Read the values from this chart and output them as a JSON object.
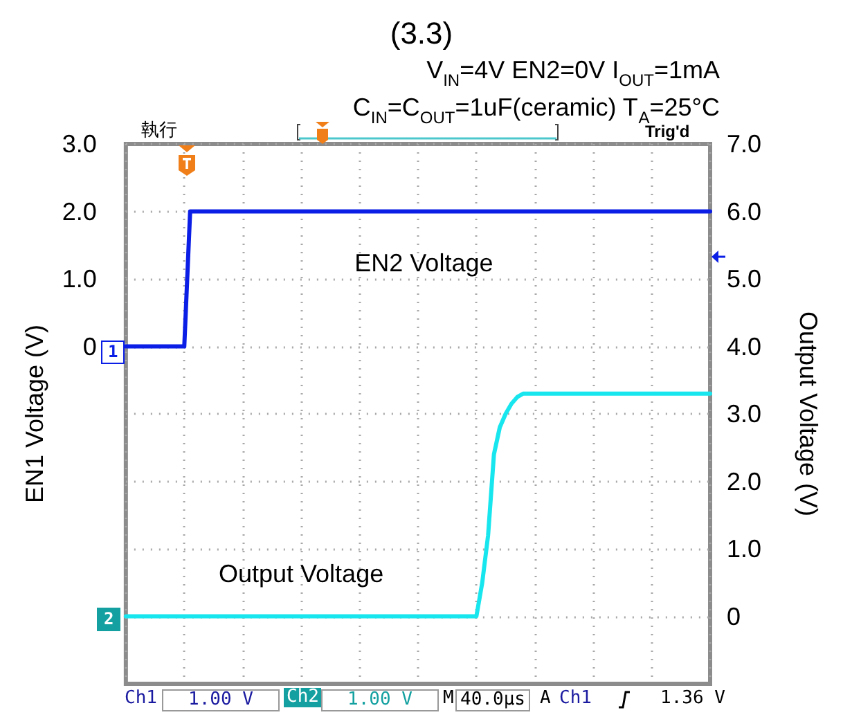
{
  "chart_data": {
    "type": "line",
    "title": "(3.3)",
    "subtitle": "V$_{IN}$=4V EN2=0V I$_{OUT}$=1mA\nC$_{IN}$=C$_{OUT}$=1uF(ceramic) T$_{A}$=25°C",
    "ylabel": "EN1 Voltage (V)",
    "y2label": "Output Voltage (V)",
    "categories": [
      null,
      null,
      null,
      null,
      null,
      null,
      null,
      null,
      null,
      null,
      null,
      null,
      null,
      null,
      null,
      null,
      null,
      null,
      null,
      null,
      null,
      null,
      null,
      null,
      null,
      null,
      null,
      null,
      null,
      null,
      null,
      null,
      null,
      null,
      null,
      null,
      null,
      null,
      null,
      null,
      null,
      null,
      null,
      null,
      null,
      null,
      null,
      null,
      null,
      null,
      null,
      null,
      null,
      null,
      null,
      null,
      null,
      null,
      null,
      null,
      null,
      null,
      null,
      null,
      null,
      null,
      null,
      null,
      null,
      null,
      null,
      null,
      null,
      null,
      null,
      null,
      null,
      null,
      null,
      null,
      null,
      null,
      null,
      null,
      null,
      null,
      null,
      null,
      null,
      null,
      null,
      null,
      null,
      null,
      null,
      null,
      null,
      null,
      null,
      null,
      null
    ],
    "series": [
      {
        "name": "EN2 Voltage",
        "color": "#0a1ee6",
        "values": [
          0,
          0,
          0,
          0,
          0,
          0,
          0,
          0,
          0,
          0,
          0,
          2,
          2,
          2,
          2,
          2,
          2,
          2,
          2,
          2,
          2,
          2,
          2,
          2,
          2,
          2,
          2,
          2,
          2,
          2,
          2,
          2,
          2,
          2,
          2,
          2,
          2,
          2,
          2,
          2,
          2,
          2,
          2,
          2,
          2,
          2,
          2,
          2,
          2,
          2,
          2,
          2,
          2,
          2,
          2,
          2,
          2,
          2,
          2,
          2,
          2,
          2,
          2,
          2,
          2,
          2,
          2,
          2,
          2,
          2,
          2,
          2,
          2,
          2,
          2,
          2,
          2,
          2,
          2,
          2,
          2,
          2,
          2,
          2,
          2,
          2,
          2,
          2,
          2,
          2,
          2,
          2,
          2,
          2,
          2,
          2,
          2,
          2,
          2,
          2,
          2
        ]
      },
      {
        "name": "Output Voltage",
        "color": "#18e6ee",
        "axis": "y2",
        "values": [
          0,
          0,
          0,
          0,
          0,
          0,
          0,
          0,
          0,
          0,
          0,
          0,
          0,
          0,
          0,
          0,
          0,
          0,
          0,
          0,
          0,
          0,
          0,
          0,
          0,
          0,
          0,
          0,
          0,
          0,
          0,
          0,
          0,
          0,
          0,
          0,
          0,
          0,
          0,
          0,
          0,
          0,
          0,
          0,
          0,
          0,
          0,
          0,
          0,
          0,
          0,
          0,
          0,
          0,
          0,
          0,
          0,
          0,
          0,
          0,
          0,
          0.5,
          1.2,
          2.4,
          2.8,
          3.0,
          3.15,
          3.25,
          3.3,
          3.3,
          3.3,
          3.3,
          3.3,
          3.3,
          3.3,
          3.3,
          3.3,
          3.3,
          3.3,
          3.3,
          3.3,
          3.3,
          3.3,
          3.3,
          3.3,
          3.3,
          3.3,
          3.3,
          3.3,
          3.3,
          3.3,
          3.3,
          3.3,
          3.3,
          3.3,
          3.3,
          3.3,
          3.3,
          3.3,
          3.3,
          3.3
        ]
      }
    ],
    "ylim": [
      -5,
      3
    ],
    "yticks": [
      0,
      {
        "value": 1,
        "label": "1.0"
      },
      {
        "value": 2,
        "label": "2.0"
      },
      {
        "value": 3,
        "label": "3.0"
      }
    ],
    "y2lim": [
      -1,
      7
    ],
    "y2ticks": [
      0,
      {
        "value": 1,
        "label": "1.0"
      },
      {
        "value": 2,
        "label": "2.0"
      },
      {
        "value": 3,
        "label": "3.0"
      },
      {
        "value": 4,
        "label": "4.0"
      },
      {
        "value": 5,
        "label": "5.0"
      },
      {
        "value": 6,
        "label": "6.0"
      },
      {
        "value": 7,
        "label": "7.0"
      }
    ],
    "grid": true,
    "tick_labels": "y",
    "annotations": [
      "執行",
      "Trig'd",
      "1",
      "2",
      "Ch1",
      "1.00 V",
      "Ch2",
      "1.00 V",
      "M",
      "40.0µs",
      "A",
      "Ch1",
      "1.36 V"
    ]
  }
}
